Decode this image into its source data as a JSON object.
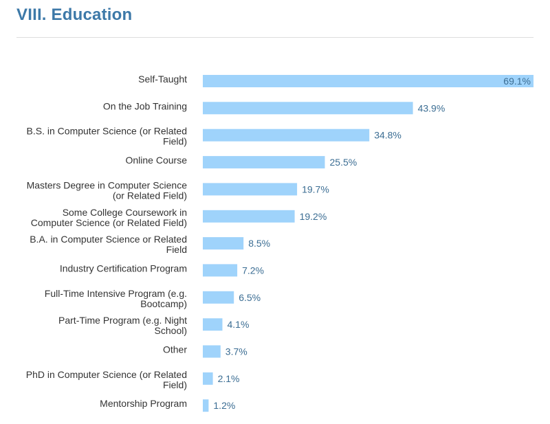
{
  "page": {
    "title": "VIII. Education"
  },
  "colors": {
    "title": "#3d79a8",
    "bar": "#9fd3fb",
    "value_label": "#3b6d93",
    "category_label": "#333333",
    "rule": "#dddddd"
  },
  "chart_data": {
    "type": "bar",
    "orientation": "horizontal",
    "title": "",
    "xlabel": "",
    "ylabel": "",
    "grid": false,
    "legend": "none",
    "xlim": [
      0,
      69.1
    ],
    "unit_suffix": "%",
    "categories": [
      "Self-Taught",
      "On the Job Training",
      "B.S. in Computer Science (or Related Field)",
      "Online Course",
      "Masters Degree in Computer Science (or Related Field)",
      "Some College Coursework in Computer Science (or Related Field)",
      "B.A. in Computer Science or Related Field",
      "Industry Certification Program",
      "Full-Time Intensive Program (e.g. Bootcamp)",
      "Part-Time Program (e.g. Night School)",
      "Other",
      "PhD in Computer Science (or Related Field)",
      "Mentorship Program"
    ],
    "category_lines": [
      [
        "Self-Taught"
      ],
      [
        "On the Job Training"
      ],
      [
        "B.S. in Computer Science (or Related",
        "Field)"
      ],
      [
        "Online Course"
      ],
      [
        "Masters Degree in Computer Science",
        "(or Related Field)"
      ],
      [
        "Some College Coursework in",
        "Computer Science (or Related Field)"
      ],
      [
        "B.A. in Computer Science or Related",
        "Field"
      ],
      [
        "Industry Certification Program"
      ],
      [
        "Full-Time Intensive Program (e.g.",
        "Bootcamp)"
      ],
      [
        "Part-Time Program (e.g. Night",
        "School)"
      ],
      [
        "Other"
      ],
      [
        "PhD in Computer Science (or Related",
        "Field)"
      ],
      [
        "Mentorship Program"
      ]
    ],
    "values": [
      69.1,
      43.9,
      34.8,
      25.5,
      19.7,
      19.2,
      8.5,
      7.2,
      6.5,
      4.1,
      3.7,
      2.1,
      1.2
    ],
    "value_labels": [
      "69.1%",
      "43.9%",
      "34.8%",
      "25.5%",
      "19.7%",
      "19.2%",
      "8.5%",
      "7.2%",
      "6.5%",
      "4.1%",
      "3.7%",
      "2.1%",
      "1.2%"
    ]
  }
}
